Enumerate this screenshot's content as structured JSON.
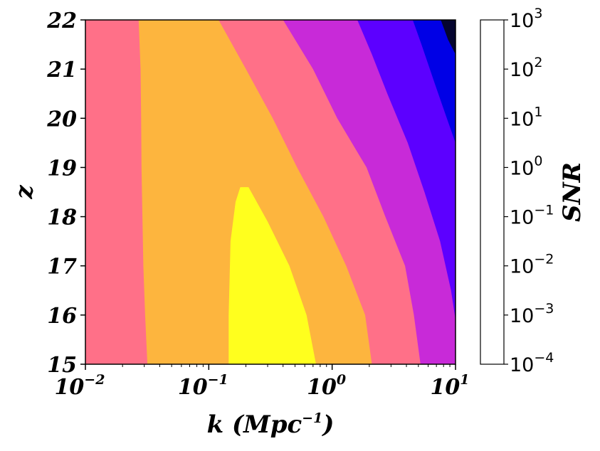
{
  "chart_data": {
    "type": "heatmap",
    "subtype": "filled-contour",
    "title": "",
    "xlabel": "k (Mpc⁻¹)",
    "xlabel_parts": {
      "main": "k (Mpc",
      "sup": "−1",
      "end": ")"
    },
    "ylabel": "z",
    "colorbar_label": "SNR",
    "x_scale": "log",
    "xlim": [
      0.01,
      10
    ],
    "ylim": [
      15,
      22
    ],
    "x_ticks": [
      {
        "value": 0.01,
        "base": "10",
        "exp": "−2"
      },
      {
        "value": 0.1,
        "base": "10",
        "exp": "−1"
      },
      {
        "value": 1,
        "base": "10",
        "exp": "0"
      },
      {
        "value": 10,
        "base": "10",
        "exp": "1"
      }
    ],
    "y_ticks": [
      15,
      16,
      17,
      18,
      19,
      20,
      21,
      22
    ],
    "levels": [
      {
        "value": 0.0001,
        "base": "10",
        "exp": "−4"
      },
      {
        "value": 0.001,
        "base": "10",
        "exp": "−3"
      },
      {
        "value": 0.01,
        "base": "10",
        "exp": "−2"
      },
      {
        "value": 0.1,
        "base": "10",
        "exp": "−1"
      },
      {
        "value": 1,
        "base": "10",
        "exp": "0"
      },
      {
        "value": 10,
        "base": "10",
        "exp": "1"
      },
      {
        "value": 100,
        "base": "10",
        "exp": "2"
      },
      {
        "value": 1000,
        "base": "10",
        "exp": "3"
      }
    ],
    "band_colors": [
      "#0d0887",
      "#0000e6",
      "#5c00ff",
      "#c82ad8",
      "#ff7088",
      "#fdb53e",
      "#ffff1e"
    ],
    "band_colors_note_dark_first": "#050530",
    "contours": [
      {
        "level": 1,
        "side": "left",
        "points": [
          [
            0.0318,
            15
          ],
          [
            0.0305,
            16
          ],
          [
            0.0295,
            17
          ],
          [
            0.029,
            18
          ],
          [
            0.0285,
            19
          ],
          [
            0.0283,
            20
          ],
          [
            0.028,
            21
          ],
          [
            0.027,
            22
          ]
        ]
      },
      {
        "level": 1,
        "side": "right",
        "points": [
          [
            2.1,
            15
          ],
          [
            1.85,
            16
          ],
          [
            1.3,
            17
          ],
          [
            0.85,
            18
          ],
          [
            0.52,
            19
          ],
          [
            0.33,
            20
          ],
          [
            0.2,
            21
          ],
          [
            0.12,
            22
          ]
        ]
      },
      {
        "level": 100,
        "points": [
          [
            0.145,
            15
          ],
          [
            0.145,
            16
          ],
          [
            0.15,
            17.5
          ],
          [
            0.165,
            18.3
          ],
          [
            0.18,
            18.6
          ],
          [
            0.21,
            18.6
          ],
          [
            0.3,
            17.9
          ],
          [
            0.45,
            17
          ],
          [
            0.62,
            16
          ],
          [
            0.74,
            15
          ]
        ]
      },
      {
        "level": 0.1,
        "points": [
          [
            5.2,
            15
          ],
          [
            4.6,
            16
          ],
          [
            3.9,
            17
          ],
          [
            2.7,
            18
          ],
          [
            1.9,
            19
          ],
          [
            1.1,
            20
          ],
          [
            0.7,
            21
          ],
          [
            0.4,
            22
          ]
        ]
      },
      {
        "level": 0.01,
        "points": [
          [
            10,
            15.9
          ],
          [
            9.2,
            16.5
          ],
          [
            7.5,
            17.5
          ],
          [
            5.6,
            18.5
          ],
          [
            4.1,
            19.5
          ],
          [
            2.8,
            20.5
          ],
          [
            2.1,
            21.3
          ],
          [
            1.6,
            22
          ]
        ]
      },
      {
        "level": 0.001,
        "points": [
          [
            10,
            19.5
          ],
          [
            8.5,
            20
          ],
          [
            6.8,
            20.7
          ],
          [
            5.3,
            21.5
          ],
          [
            4.5,
            22
          ]
        ]
      },
      {
        "level": 0.0001,
        "points": [
          [
            10,
            21.3
          ],
          [
            8.7,
            21.6
          ],
          [
            7.6,
            22
          ]
        ]
      }
    ]
  }
}
